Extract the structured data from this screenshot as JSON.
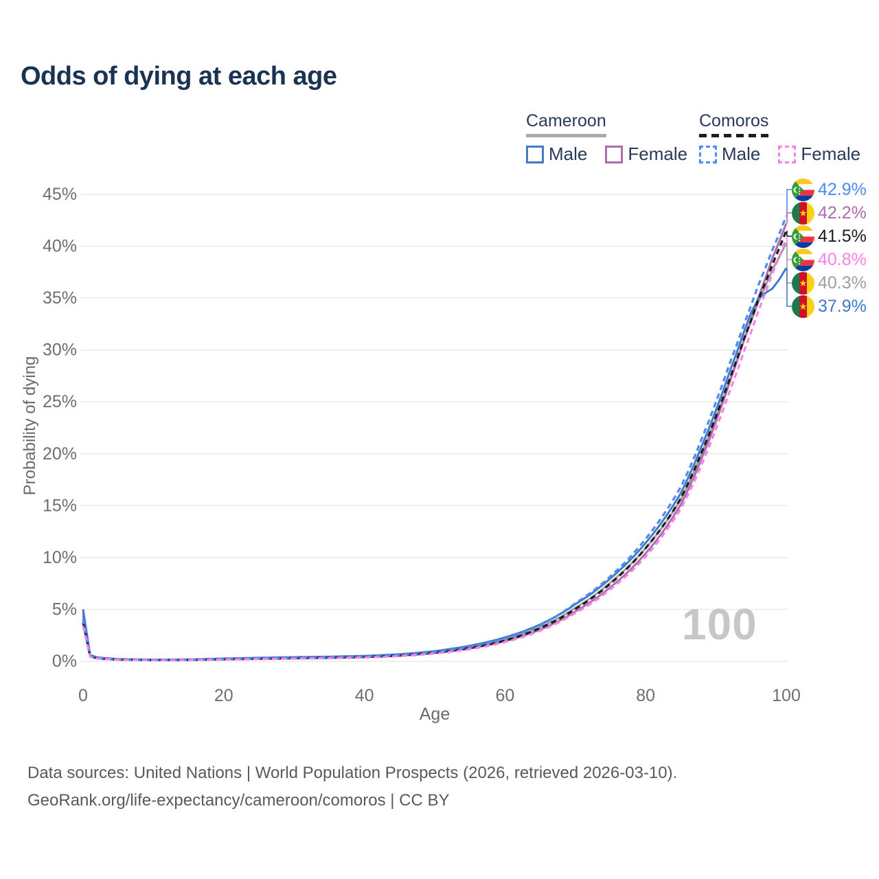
{
  "title": "Odds of dying at each age",
  "legend": {
    "groups": [
      {
        "name": "Cameroon",
        "line_style": "solid",
        "underline_color": "#ababab",
        "items": [
          {
            "label": "Male",
            "color": "#4478c8",
            "dashed": false
          },
          {
            "label": "Female",
            "color": "#ad6cad",
            "dashed": false
          }
        ]
      },
      {
        "name": "Comoros",
        "line_style": "dashed",
        "underline_color": "#1c1c1c",
        "items": [
          {
            "label": "Male",
            "color": "#4a8bf5",
            "dashed": true
          },
          {
            "label": "Female",
            "color": "#fb80ea",
            "dashed": true
          }
        ]
      }
    ]
  },
  "axes": {
    "x_title": "Age",
    "y_title": "Probability of dying",
    "x_ticks": [
      "0",
      "20",
      "40",
      "60",
      "80",
      "100"
    ],
    "x_tick_ages": [
      0,
      20,
      40,
      60,
      80,
      100
    ],
    "y_ticks": [
      "0%",
      "5%",
      "10%",
      "15%",
      "20%",
      "25%",
      "30%",
      "35%",
      "40%",
      "45%"
    ],
    "y_tick_values": [
      0,
      5,
      10,
      15,
      20,
      25,
      30,
      35,
      40,
      45
    ]
  },
  "watermark": "100",
  "endpoints": [
    {
      "series": "Comoros Male",
      "flag": "comoros",
      "value": "42.9%",
      "value_pct": 42.9,
      "color": "#4a8bf5"
    },
    {
      "series": "Cameroon Female",
      "flag": "cameroon",
      "value": "42.2%",
      "value_pct": 42.2,
      "color": "#ad6cad"
    },
    {
      "series": "Comoros",
      "flag": "comoros",
      "value": "41.5%",
      "value_pct": 41.5,
      "color": "#1c1c1c"
    },
    {
      "series": "Comoros Female",
      "flag": "comoros",
      "value": "40.8%",
      "value_pct": 40.8,
      "color": "#fb80ea"
    },
    {
      "series": "Cameroon",
      "flag": "cameroon",
      "value": "40.3%",
      "value_pct": 40.3,
      "color": "#9e9e9e"
    },
    {
      "series": "Cameroon Male",
      "flag": "cameroon",
      "value": "37.9%",
      "value_pct": 37.9,
      "color": "#4478c8"
    }
  ],
  "footer": {
    "line1": "Data sources: United Nations | World Population Prospects (2026, retrieved 2026-03-10).",
    "line2": "GeoRank.org/life-expectancy/cameroon/comoros | CC BY"
  },
  "chart_data": {
    "type": "line",
    "title": "Odds of dying at each age",
    "xlabel": "Age",
    "ylabel": "Probability of dying",
    "x_unit": "years",
    "y_unit": "percent",
    "xlim": [
      0,
      100
    ],
    "ylim": [
      0,
      45
    ],
    "grid": "horizontal",
    "legend_position": "top-right",
    "hover_age": "100",
    "series": [
      {
        "name": "Cameroon",
        "country": "Cameroon",
        "sex": "both",
        "style": "solid",
        "color": "#9e9e9e",
        "end_label": "40.3%",
        "points": [
          [
            0,
            4.7
          ],
          [
            1,
            0.58
          ],
          [
            2,
            0.35
          ],
          [
            5,
            0.21
          ],
          [
            10,
            0.15
          ],
          [
            15,
            0.16
          ],
          [
            20,
            0.24
          ],
          [
            25,
            0.3
          ],
          [
            30,
            0.36
          ],
          [
            35,
            0.4
          ],
          [
            40,
            0.47
          ],
          [
            45,
            0.62
          ],
          [
            50,
            0.9
          ],
          [
            55,
            1.37
          ],
          [
            60,
            2.1
          ],
          [
            65,
            3.3
          ],
          [
            70,
            5.15
          ],
          [
            75,
            7.6
          ],
          [
            80,
            10.9
          ],
          [
            85,
            15.6
          ],
          [
            88,
            20.1
          ],
          [
            90,
            23.5
          ],
          [
            92,
            27.2
          ],
          [
            94,
            31.0
          ],
          [
            96,
            34.6
          ],
          [
            98,
            37.7
          ],
          [
            100,
            40.3
          ]
        ]
      },
      {
        "name": "Cameroon Female",
        "country": "Cameroon",
        "sex": "female",
        "style": "solid",
        "color": "#ad6cad",
        "end_label": "42.2%",
        "points": [
          [
            0,
            4.4
          ],
          [
            1,
            0.55
          ],
          [
            2,
            0.33
          ],
          [
            5,
            0.2
          ],
          [
            10,
            0.14
          ],
          [
            15,
            0.15
          ],
          [
            20,
            0.21
          ],
          [
            25,
            0.26
          ],
          [
            30,
            0.31
          ],
          [
            35,
            0.35
          ],
          [
            40,
            0.42
          ],
          [
            45,
            0.56
          ],
          [
            50,
            0.83
          ],
          [
            55,
            1.25
          ],
          [
            60,
            1.95
          ],
          [
            65,
            3.05
          ],
          [
            70,
            4.8
          ],
          [
            75,
            7.15
          ],
          [
            80,
            10.4
          ],
          [
            85,
            15.1
          ],
          [
            88,
            19.6
          ],
          [
            90,
            23.1
          ],
          [
            92,
            27.0
          ],
          [
            94,
            31.0
          ],
          [
            96,
            35.0
          ],
          [
            98,
            38.8
          ],
          [
            100,
            42.2
          ]
        ]
      },
      {
        "name": "Cameroon Male",
        "country": "Cameroon",
        "sex": "male",
        "style": "solid",
        "color": "#4478c8",
        "end_label": "37.9%",
        "points": [
          [
            0,
            5.0
          ],
          [
            1,
            0.62
          ],
          [
            2,
            0.38
          ],
          [
            5,
            0.22
          ],
          [
            10,
            0.16
          ],
          [
            15,
            0.18
          ],
          [
            20,
            0.27
          ],
          [
            25,
            0.34
          ],
          [
            30,
            0.4
          ],
          [
            35,
            0.45
          ],
          [
            40,
            0.52
          ],
          [
            45,
            0.68
          ],
          [
            50,
            0.98
          ],
          [
            55,
            1.5
          ],
          [
            60,
            2.3
          ],
          [
            65,
            3.55
          ],
          [
            70,
            5.5
          ],
          [
            75,
            8.0
          ],
          [
            80,
            11.4
          ],
          [
            85,
            16.2
          ],
          [
            88,
            20.8
          ],
          [
            90,
            24.2
          ],
          [
            92,
            28.0
          ],
          [
            94,
            31.8
          ],
          [
            95,
            33.6
          ],
          [
            96,
            34.9
          ],
          [
            97,
            35.5
          ],
          [
            98,
            35.9
          ],
          [
            99,
            36.8
          ],
          [
            100,
            37.9
          ]
        ]
      },
      {
        "name": "Comoros",
        "country": "Comoros",
        "sex": "both",
        "style": "dashed",
        "color": "#1c1c1c",
        "end_label": "41.5%",
        "points": [
          [
            0,
            3.75
          ],
          [
            1,
            0.48
          ],
          [
            2,
            0.28
          ],
          [
            5,
            0.16
          ],
          [
            10,
            0.12
          ],
          [
            15,
            0.13
          ],
          [
            20,
            0.19
          ],
          [
            25,
            0.24
          ],
          [
            30,
            0.29
          ],
          [
            35,
            0.34
          ],
          [
            40,
            0.41
          ],
          [
            45,
            0.55
          ],
          [
            50,
            0.82
          ],
          [
            55,
            1.28
          ],
          [
            60,
            2.0
          ],
          [
            65,
            3.2
          ],
          [
            70,
            5.05
          ],
          [
            75,
            7.5
          ],
          [
            80,
            10.9
          ],
          [
            85,
            15.7
          ],
          [
            88,
            20.2
          ],
          [
            90,
            23.6
          ],
          [
            92,
            27.3
          ],
          [
            94,
            31.1
          ],
          [
            96,
            34.8
          ],
          [
            98,
            38.2
          ],
          [
            100,
            41.5
          ]
        ]
      },
      {
        "name": "Comoros Male",
        "country": "Comoros",
        "sex": "male",
        "style": "dashed",
        "color": "#4a8bf5",
        "end_label": "42.9%",
        "points": [
          [
            0,
            4.1
          ],
          [
            1,
            0.5
          ],
          [
            2,
            0.3
          ],
          [
            5,
            0.17
          ],
          [
            10,
            0.13
          ],
          [
            15,
            0.15
          ],
          [
            20,
            0.22
          ],
          [
            25,
            0.27
          ],
          [
            30,
            0.33
          ],
          [
            35,
            0.38
          ],
          [
            40,
            0.45
          ],
          [
            45,
            0.6
          ],
          [
            50,
            0.9
          ],
          [
            55,
            1.4
          ],
          [
            60,
            2.2
          ],
          [
            65,
            3.5
          ],
          [
            70,
            5.6
          ],
          [
            75,
            8.2
          ],
          [
            80,
            11.8
          ],
          [
            85,
            16.8
          ],
          [
            88,
            21.5
          ],
          [
            90,
            25.0
          ],
          [
            92,
            28.8
          ],
          [
            94,
            32.5
          ],
          [
            96,
            36.2
          ],
          [
            98,
            39.6
          ],
          [
            100,
            42.9
          ]
        ]
      },
      {
        "name": "Comoros Female",
        "country": "Comoros",
        "sex": "female",
        "style": "dashed",
        "color": "#fb80ea",
        "end_label": "40.8%",
        "points": [
          [
            0,
            3.4
          ],
          [
            1,
            0.45
          ],
          [
            2,
            0.27
          ],
          [
            5,
            0.15
          ],
          [
            10,
            0.11
          ],
          [
            15,
            0.12
          ],
          [
            20,
            0.17
          ],
          [
            25,
            0.22
          ],
          [
            30,
            0.26
          ],
          [
            35,
            0.3
          ],
          [
            40,
            0.37
          ],
          [
            45,
            0.5
          ],
          [
            50,
            0.75
          ],
          [
            55,
            1.17
          ],
          [
            60,
            1.85
          ],
          [
            65,
            2.95
          ],
          [
            70,
            4.65
          ],
          [
            75,
            6.95
          ],
          [
            80,
            10.1
          ],
          [
            85,
            14.7
          ],
          [
            88,
            19.0
          ],
          [
            90,
            22.4
          ],
          [
            92,
            26.1
          ],
          [
            94,
            29.9
          ],
          [
            96,
            33.7
          ],
          [
            98,
            37.3
          ],
          [
            100,
            40.8
          ]
        ]
      }
    ]
  }
}
